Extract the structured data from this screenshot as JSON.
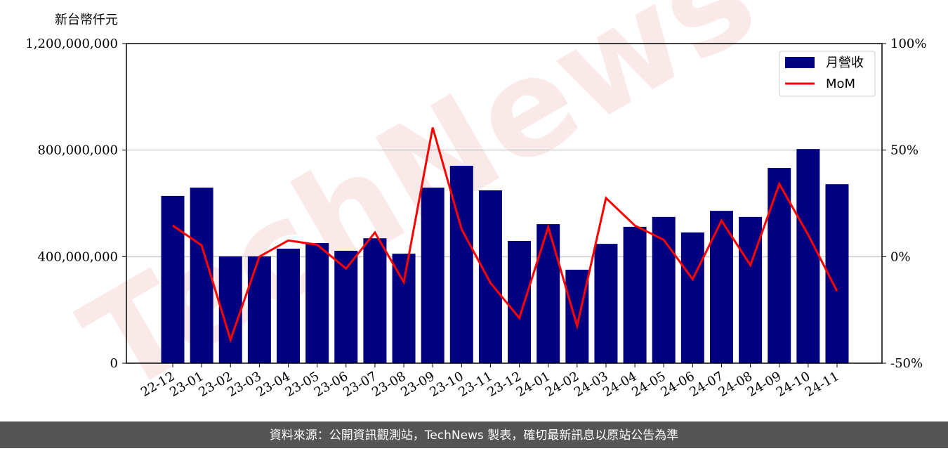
{
  "chart_data": {
    "type": "bar",
    "y_label": "新台幣仟元",
    "watermark": "TechNews",
    "categories": [
      "22-12",
      "23-01",
      "23-02",
      "23-03",
      "23-04",
      "23-05",
      "23-06",
      "23-07",
      "23-08",
      "23-09",
      "23-10",
      "23-11",
      "23-12",
      "24-01",
      "24-02",
      "24-03",
      "24-04",
      "24-05",
      "24-06",
      "24-07",
      "24-08",
      "24-09",
      "24-10",
      "24-11"
    ],
    "series": [
      {
        "name": "月營收",
        "type": "bar",
        "color": "#000080",
        "values": [
          628000000,
          659000000,
          401000000,
          401000000,
          430000000,
          451000000,
          422000000,
          469000000,
          411000000,
          659000000,
          741000000,
          649000000,
          459000000,
          522000000,
          351000000,
          448000000,
          512000000,
          549000000,
          491000000,
          572000000,
          549000000,
          733000000,
          804000000,
          672000000
        ]
      },
      {
        "name": "MoM",
        "type": "line",
        "axis": "y2",
        "color": "#ff0000",
        "values": [
          14.6,
          5.3,
          -39,
          0,
          7.6,
          5.6,
          -5.6,
          11.3,
          -12,
          60.6,
          12.9,
          -12.3,
          -28.8,
          13.9,
          -32.5,
          27.5,
          14.6,
          7.9,
          -10.6,
          16.9,
          -4,
          34.1,
          10.3,
          -16.2
        ]
      }
    ],
    "ylim": [
      0,
      1200000000
    ],
    "yticks": [
      0,
      {
        "value": 400000000,
        "label": "400,000,000"
      },
      {
        "value": 800000000,
        "label": "800,000,000"
      },
      {
        "value": 1200000000,
        "label": "1,200,000,000"
      }
    ],
    "y2lim": [
      -50,
      100
    ],
    "y2ticks": [
      {
        "value": -50,
        "label": "-50%"
      },
      {
        "value": 0,
        "label": "0%"
      },
      {
        "value": 50,
        "label": "50%"
      },
      {
        "value": 100,
        "label": "100%"
      }
    ],
    "grid": true,
    "legend": "upper right"
  },
  "footer": "資料來源：公開資訊觀測站，TechNews 製表，確切最新訊息以原站公告為準"
}
